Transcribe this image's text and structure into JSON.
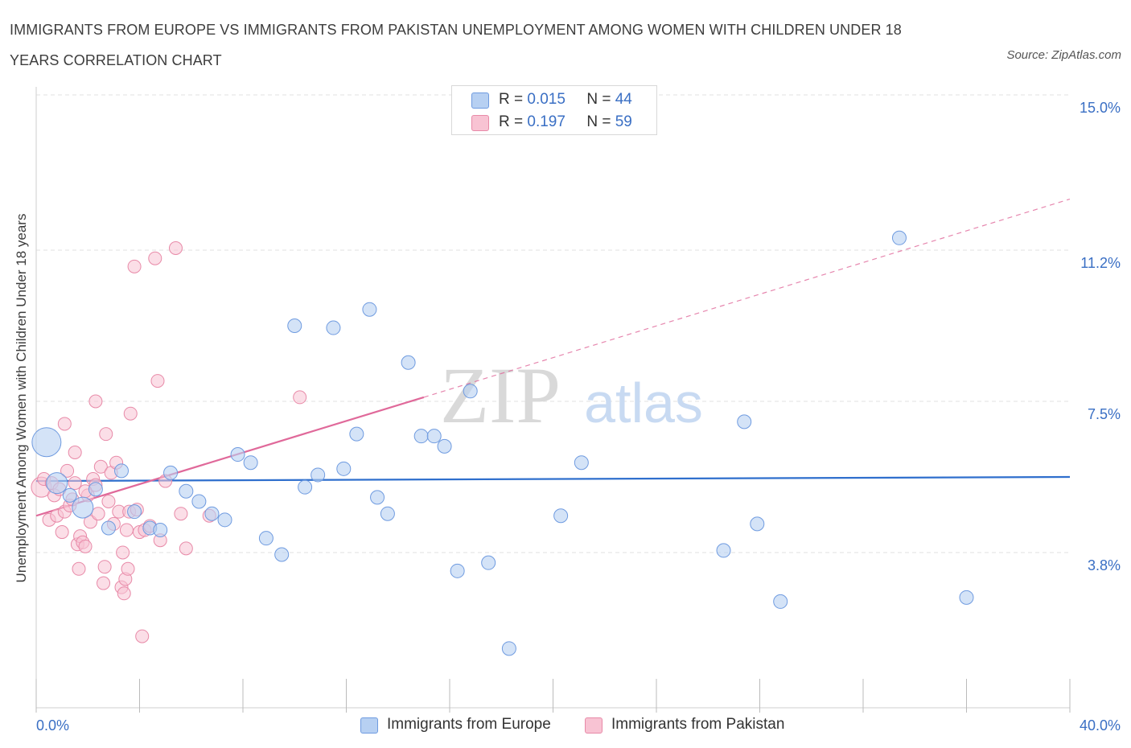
{
  "title": "IMMIGRANTS FROM EUROPE VS IMMIGRANTS FROM PAKISTAN UNEMPLOYMENT AMONG WOMEN WITH CHILDREN UNDER 18 YEARS CORRELATION CHART",
  "source": "Source: ZipAtlas.com",
  "watermark": {
    "zip": "ZIP",
    "atlas": "atlas"
  },
  "legend": {
    "r_label": "R =",
    "n_label": "N =",
    "europe": {
      "r": "0.015",
      "n": "44"
    },
    "pakistan": {
      "r": "0.197",
      "n": "59"
    }
  },
  "colors": {
    "europe_fill": "#b7d0f2",
    "europe_stroke": "#6f9be0",
    "europe_line": "#2f6fcd",
    "pakistan_fill": "#f8c3d3",
    "pakistan_stroke": "#e88aa8",
    "pakistan_line": "#e0699a",
    "tick_label": "#3a6fc4",
    "grid": "#e2e2e2"
  },
  "chart_data": {
    "type": "scatter",
    "title": "IMMIGRANTS FROM EUROPE VS IMMIGRANTS FROM PAKISTAN UNEMPLOYMENT AMONG WOMEN WITH CHILDREN UNDER 18 YEARS CORRELATION CHART",
    "xlabel": "",
    "ylabel": "Unemployment Among Women with Children Under 18 years",
    "xlim": [
      0,
      40
    ],
    "ylim": [
      0,
      15
    ],
    "x_tick_labels": [
      {
        "value": 0,
        "label": "0.0%"
      },
      {
        "value": 40,
        "label": "40.0%"
      }
    ],
    "y_tick_labels": [
      {
        "value": 3.8,
        "label": "3.8%"
      },
      {
        "value": 7.5,
        "label": "7.5%"
      },
      {
        "value": 11.2,
        "label": "11.2%"
      },
      {
        "value": 15.0,
        "label": "15.0%"
      }
    ],
    "legend_position": "top-center",
    "series": [
      {
        "name": "Immigrants from Europe",
        "r": 0.015,
        "n": 44,
        "trend": {
          "x": [
            0,
            40
          ],
          "y": [
            5.55,
            5.65
          ],
          "style": "solid"
        },
        "points": [
          {
            "x": 0.4,
            "y": 6.5,
            "size": "large"
          },
          {
            "x": 0.8,
            "y": 5.5,
            "size": "medium"
          },
          {
            "x": 1.3,
            "y": 5.2
          },
          {
            "x": 1.8,
            "y": 4.9,
            "size": "medium"
          },
          {
            "x": 2.3,
            "y": 5.35
          },
          {
            "x": 2.8,
            "y": 4.4
          },
          {
            "x": 3.3,
            "y": 5.8
          },
          {
            "x": 3.8,
            "y": 4.8
          },
          {
            "x": 4.4,
            "y": 4.4
          },
          {
            "x": 4.8,
            "y": 4.35
          },
          {
            "x": 5.2,
            "y": 5.75
          },
          {
            "x": 5.8,
            "y": 5.3
          },
          {
            "x": 6.3,
            "y": 5.05
          },
          {
            "x": 6.8,
            "y": 4.75
          },
          {
            "x": 7.3,
            "y": 4.6
          },
          {
            "x": 7.8,
            "y": 6.2
          },
          {
            "x": 8.3,
            "y": 6.0
          },
          {
            "x": 8.9,
            "y": 4.15
          },
          {
            "x": 9.5,
            "y": 3.75
          },
          {
            "x": 10.0,
            "y": 9.35
          },
          {
            "x": 10.4,
            "y": 5.4
          },
          {
            "x": 10.9,
            "y": 5.7
          },
          {
            "x": 11.5,
            "y": 9.3
          },
          {
            "x": 11.9,
            "y": 5.85
          },
          {
            "x": 12.4,
            "y": 6.7
          },
          {
            "x": 12.9,
            "y": 9.75
          },
          {
            "x": 13.2,
            "y": 5.15
          },
          {
            "x": 13.6,
            "y": 4.75
          },
          {
            "x": 14.4,
            "y": 8.45
          },
          {
            "x": 14.9,
            "y": 6.65
          },
          {
            "x": 15.4,
            "y": 6.65
          },
          {
            "x": 15.8,
            "y": 6.4
          },
          {
            "x": 16.3,
            "y": 3.35
          },
          {
            "x": 16.8,
            "y": 7.75
          },
          {
            "x": 17.5,
            "y": 3.55
          },
          {
            "x": 18.3,
            "y": 1.45
          },
          {
            "x": 20.3,
            "y": 4.7
          },
          {
            "x": 21.1,
            "y": 6.0
          },
          {
            "x": 26.6,
            "y": 3.85
          },
          {
            "x": 27.4,
            "y": 7.0
          },
          {
            "x": 27.9,
            "y": 4.5
          },
          {
            "x": 28.8,
            "y": 2.6
          },
          {
            "x": 33.4,
            "y": 11.5
          },
          {
            "x": 36.0,
            "y": 2.7
          }
        ]
      },
      {
        "name": "Immigrants from Pakistan",
        "r": 0.197,
        "n": 59,
        "trend": {
          "x": [
            0,
            15
          ],
          "y": [
            4.7,
            7.6
          ],
          "style": "solid",
          "extension": {
            "x": [
              15,
              40
            ],
            "y": [
              7.6,
              12.45
            ],
            "style": "dashed"
          }
        },
        "points": [
          {
            "x": 0.2,
            "y": 5.4,
            "size": "medium"
          },
          {
            "x": 0.3,
            "y": 5.6
          },
          {
            "x": 0.5,
            "y": 4.6
          },
          {
            "x": 0.6,
            "y": 5.5
          },
          {
            "x": 0.7,
            "y": 5.2
          },
          {
            "x": 0.8,
            "y": 4.7
          },
          {
            "x": 0.9,
            "y": 5.35
          },
          {
            "x": 1.0,
            "y": 4.3
          },
          {
            "x": 1.1,
            "y": 4.8
          },
          {
            "x": 1.2,
            "y": 5.8
          },
          {
            "x": 1.1,
            "y": 6.95
          },
          {
            "x": 1.3,
            "y": 4.95
          },
          {
            "x": 1.4,
            "y": 5.1
          },
          {
            "x": 1.5,
            "y": 5.5
          },
          {
            "x": 1.5,
            "y": 6.25
          },
          {
            "x": 1.6,
            "y": 4.0
          },
          {
            "x": 1.65,
            "y": 3.4
          },
          {
            "x": 1.7,
            "y": 4.2
          },
          {
            "x": 1.8,
            "y": 4.05
          },
          {
            "x": 1.9,
            "y": 3.95
          },
          {
            "x": 2.0,
            "y": 5.2
          },
          {
            "x": 2.1,
            "y": 4.55
          },
          {
            "x": 2.2,
            "y": 5.6
          },
          {
            "x": 2.3,
            "y": 5.45
          },
          {
            "x": 2.3,
            "y": 7.5
          },
          {
            "x": 2.4,
            "y": 4.75
          },
          {
            "x": 2.5,
            "y": 5.9
          },
          {
            "x": 2.6,
            "y": 3.05
          },
          {
            "x": 2.65,
            "y": 3.45
          },
          {
            "x": 2.7,
            "y": 6.7
          },
          {
            "x": 2.8,
            "y": 5.05
          },
          {
            "x": 2.9,
            "y": 5.75
          },
          {
            "x": 3.0,
            "y": 4.5
          },
          {
            "x": 3.1,
            "y": 6.0
          },
          {
            "x": 3.2,
            "y": 4.8
          },
          {
            "x": 3.3,
            "y": 2.95
          },
          {
            "x": 3.35,
            "y": 3.8
          },
          {
            "x": 3.4,
            "y": 2.8
          },
          {
            "x": 3.45,
            "y": 3.15
          },
          {
            "x": 3.5,
            "y": 4.35
          },
          {
            "x": 3.55,
            "y": 3.4
          },
          {
            "x": 3.6,
            "y": 4.8
          },
          {
            "x": 3.65,
            "y": 7.2
          },
          {
            "x": 3.8,
            "y": 10.8
          },
          {
            "x": 3.9,
            "y": 4.85
          },
          {
            "x": 4.0,
            "y": 4.3
          },
          {
            "x": 4.1,
            "y": 1.75
          },
          {
            "x": 4.2,
            "y": 4.35
          },
          {
            "x": 4.4,
            "y": 4.45
          },
          {
            "x": 4.6,
            "y": 11.0
          },
          {
            "x": 4.7,
            "y": 8.0
          },
          {
            "x": 4.8,
            "y": 4.1
          },
          {
            "x": 5.0,
            "y": 5.55
          },
          {
            "x": 5.4,
            "y": 11.25
          },
          {
            "x": 5.6,
            "y": 4.75
          },
          {
            "x": 5.8,
            "y": 3.9
          },
          {
            "x": 6.7,
            "y": 4.7
          },
          {
            "x": 10.2,
            "y": 7.6
          },
          {
            "x": 1.9,
            "y": 5.3
          }
        ]
      }
    ]
  },
  "bottom_legend": {
    "europe": "Immigrants from Europe",
    "pakistan": "Immigrants from Pakistan"
  }
}
